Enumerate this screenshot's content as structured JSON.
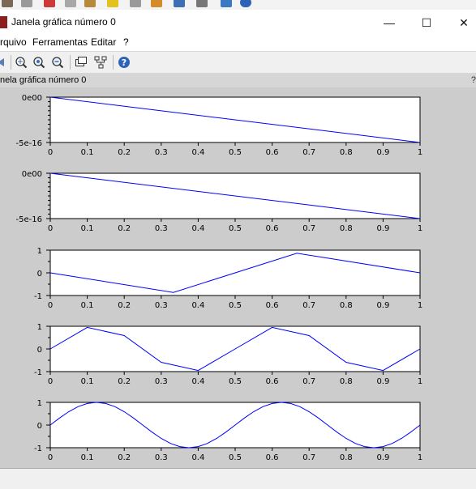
{
  "window": {
    "title": "Janela gráfica número 0",
    "minimize": "—",
    "maximize": "☐",
    "close": "✕"
  },
  "menu": [
    "rquivo",
    "Ferramentas",
    "Editar",
    "?"
  ],
  "toolbar": {
    "icons": [
      "rotate-icon",
      "zoom-grid-icon",
      "zoom-in-icon",
      "zoom-out-icon",
      "datatip-icon",
      "tree-icon",
      "help-icon"
    ]
  },
  "graphic": {
    "header": "nela gráfica número 0",
    "help_glyph": "?"
  },
  "colors": {
    "line": "#0000ff",
    "canvas": "#cccccc",
    "plot_bg": "#ffffff"
  },
  "chart_data": [
    {
      "type": "line",
      "x": [
        0,
        1
      ],
      "y": [
        0,
        -5e-16
      ],
      "xlim": [
        0,
        1
      ],
      "ylim": [
        -5e-16,
        0
      ],
      "xticks": [
        "0",
        "0.1",
        "0.2",
        "0.3",
        "0.4",
        "0.5",
        "0.6",
        "0.7",
        "0.8",
        "0.9",
        "1"
      ],
      "yticks": [
        {
          "v": -5e-16,
          "label": "-5e-16"
        },
        {
          "v": 0,
          "label": "0e00"
        }
      ],
      "yminor": 10
    },
    {
      "type": "line",
      "x": [
        0,
        1
      ],
      "y": [
        0,
        -5e-16
      ],
      "xlim": [
        0,
        1
      ],
      "ylim": [
        -5e-16,
        0
      ],
      "xticks": [
        "0",
        "0.1",
        "0.2",
        "0.3",
        "0.4",
        "0.5",
        "0.6",
        "0.7",
        "0.8",
        "0.9",
        "1"
      ],
      "yticks": [
        {
          "v": -5e-16,
          "label": "-5e-16"
        },
        {
          "v": 0,
          "label": "0e00"
        }
      ],
      "yminor": 10
    },
    {
      "type": "line",
      "x": [
        0,
        0.333,
        0.667,
        1
      ],
      "y": [
        0,
        -0.866,
        0.866,
        0
      ],
      "xlim": [
        0,
        1
      ],
      "ylim": [
        -1,
        1
      ],
      "xticks": [
        "0",
        "0.1",
        "0.2",
        "0.3",
        "0.4",
        "0.5",
        "0.6",
        "0.7",
        "0.8",
        "0.9",
        "1"
      ],
      "yticks": [
        {
          "v": -1,
          "label": "-1"
        },
        {
          "v": 0,
          "label": "0"
        },
        {
          "v": 1,
          "label": "1"
        }
      ],
      "yminor": 4
    },
    {
      "type": "line",
      "x": [
        0,
        0.1,
        0.2,
        0.3,
        0.4,
        0.5,
        0.6,
        0.7,
        0.8,
        0.9,
        1
      ],
      "y": [
        0,
        0.951,
        0.588,
        -0.588,
        -0.951,
        0,
        0.951,
        0.588,
        -0.588,
        -0.951,
        0
      ],
      "xlim": [
        0,
        1
      ],
      "ylim": [
        -1,
        1
      ],
      "xticks": [
        "0",
        "0.1",
        "0.2",
        "0.3",
        "0.4",
        "0.5",
        "0.6",
        "0.7",
        "0.8",
        "0.9",
        "1"
      ],
      "yticks": [
        {
          "v": -1,
          "label": "-1"
        },
        {
          "v": 0,
          "label": "0"
        },
        {
          "v": 1,
          "label": "1"
        }
      ],
      "yminor": 4
    },
    {
      "type": "line",
      "x": [
        0,
        0.025,
        0.05,
        0.075,
        0.1,
        0.125,
        0.15,
        0.175,
        0.2,
        0.225,
        0.25,
        0.275,
        0.3,
        0.325,
        0.35,
        0.375,
        0.4,
        0.425,
        0.45,
        0.475,
        0.5,
        0.525,
        0.55,
        0.575,
        0.6,
        0.625,
        0.65,
        0.675,
        0.7,
        0.725,
        0.75,
        0.775,
        0.8,
        0.825,
        0.85,
        0.875,
        0.9,
        0.925,
        0.95,
        0.975,
        1
      ],
      "y": [
        0,
        0.309,
        0.588,
        0.809,
        0.951,
        1,
        0.951,
        0.809,
        0.588,
        0.309,
        0,
        -0.309,
        -0.588,
        -0.809,
        -0.951,
        -1,
        -0.951,
        -0.809,
        -0.588,
        -0.309,
        0,
        0.309,
        0.588,
        0.809,
        0.951,
        1,
        0.951,
        0.809,
        0.588,
        0.309,
        0,
        -0.309,
        -0.588,
        -0.809,
        -0.951,
        -1,
        -0.951,
        -0.809,
        -0.588,
        -0.309,
        0
      ],
      "xlim": [
        0,
        1
      ],
      "ylim": [
        -1,
        1
      ],
      "xticks": [
        "0",
        "0.1",
        "0.2",
        "0.3",
        "0.4",
        "0.5",
        "0.6",
        "0.7",
        "0.8",
        "0.9",
        "1"
      ],
      "yticks": [
        {
          "v": -1,
          "label": "-1"
        },
        {
          "v": 0,
          "label": "0"
        },
        {
          "v": 1,
          "label": "1"
        }
      ],
      "yminor": 4
    }
  ]
}
